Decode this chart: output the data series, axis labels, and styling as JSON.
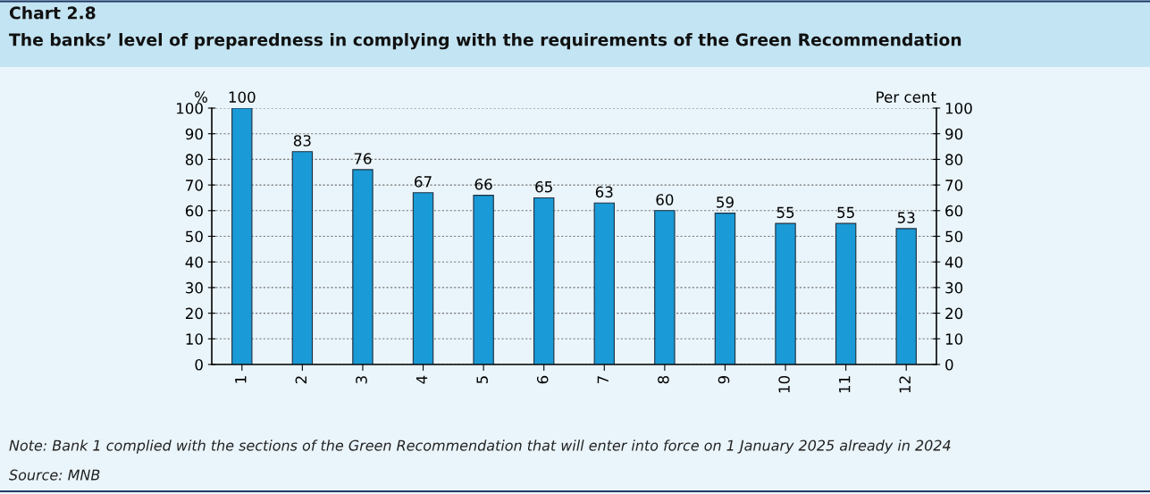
{
  "chart_data": {
    "type": "bar",
    "title": "Chart 2.8",
    "subtitle": "The banks’ level of preparedness in complying with the requirements of the Green Recommendation",
    "ylabel": "%",
    "y2label": "Per cent",
    "categories": [
      "1",
      "2",
      "3",
      "4",
      "5",
      "6",
      "7",
      "8",
      "9",
      "10",
      "11",
      "12"
    ],
    "values": [
      100,
      83,
      76,
      67,
      66,
      65,
      63,
      60,
      59,
      55,
      55,
      53
    ],
    "color": "#1a9ad6",
    "data_labels": true,
    "ylim": [
      0,
      100
    ],
    "yticks": [
      0,
      10,
      20,
      30,
      40,
      50,
      60,
      70,
      80,
      90,
      100
    ],
    "y2lim": [
      0,
      100
    ],
    "y2ticks": [
      0,
      10,
      20,
      30,
      40,
      50,
      60,
      70,
      80,
      90,
      100
    ],
    "grid": "y",
    "legend": false,
    "annotations": [
      "Note: Bank 1 complied with the sections of the Green Recommendation that will enter into force on 1 January 2025 already in 2024",
      "Source: MNB"
    ]
  }
}
